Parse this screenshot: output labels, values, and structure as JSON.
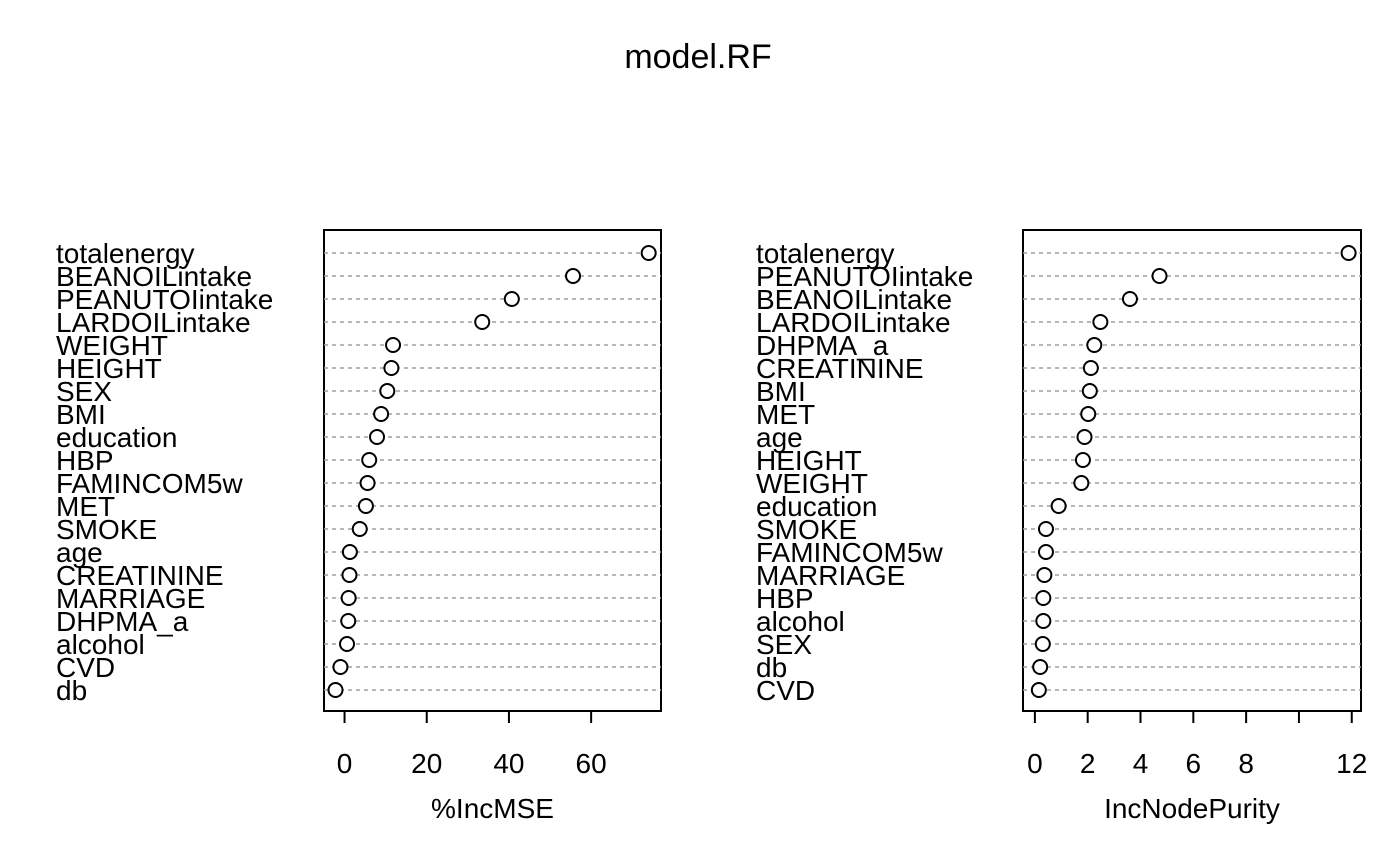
{
  "chart_data": {
    "type": "scatter",
    "title": "model.RF",
    "grid": "dotted",
    "panels": [
      {
        "xlabel": "%IncMSE",
        "ticks": [
          0,
          20,
          40,
          60
        ],
        "xlim": [
          -5,
          77
        ],
        "points": [
          {
            "label": "totalenergy",
            "value": 74.0
          },
          {
            "label": "BEANOILintake",
            "value": 55.6
          },
          {
            "label": "PEANUTOIintake",
            "value": 40.7
          },
          {
            "label": "LARDOILintake",
            "value": 33.5
          },
          {
            "label": "WEIGHT",
            "value": 11.8
          },
          {
            "label": "HEIGHT",
            "value": 11.4
          },
          {
            "label": "SEX",
            "value": 10.4
          },
          {
            "label": "BMI",
            "value": 8.9
          },
          {
            "label": "education",
            "value": 7.9
          },
          {
            "label": "HBP",
            "value": 6.0
          },
          {
            "label": "FAMINCOM5w",
            "value": 5.6
          },
          {
            "label": "MET",
            "value": 5.2
          },
          {
            "label": "SMOKE",
            "value": 3.7
          },
          {
            "label": "age",
            "value": 1.3
          },
          {
            "label": "CREATININE",
            "value": 1.2
          },
          {
            "label": "MARRIAGE",
            "value": 1.0
          },
          {
            "label": "DHPMA_a",
            "value": 0.9
          },
          {
            "label": "alcohol",
            "value": 0.6
          },
          {
            "label": "CVD",
            "value": -1.0
          },
          {
            "label": "db",
            "value": -2.2
          }
        ]
      },
      {
        "xlabel": "IncNodePurity",
        "ticks": [
          0,
          2,
          4,
          6,
          8,
          10,
          12
        ],
        "tick_labels": [
          "0",
          "2",
          "4",
          "6",
          "8",
          "",
          "12"
        ],
        "xlim": [
          -0.45,
          12.35
        ],
        "points": [
          {
            "label": "totalenergy",
            "value": 11.88
          },
          {
            "label": "PEANUTOIintake",
            "value": 4.72
          },
          {
            "label": "BEANOILintake",
            "value": 3.6
          },
          {
            "label": "LARDOILintake",
            "value": 2.48
          },
          {
            "label": "DHPMA_a",
            "value": 2.25
          },
          {
            "label": "CREATININE",
            "value": 2.12
          },
          {
            "label": "BMI",
            "value": 2.08
          },
          {
            "label": "MET",
            "value": 2.02
          },
          {
            "label": "age",
            "value": 1.88
          },
          {
            "label": "HEIGHT",
            "value": 1.82
          },
          {
            "label": "WEIGHT",
            "value": 1.76
          },
          {
            "label": "education",
            "value": 0.9
          },
          {
            "label": "SMOKE",
            "value": 0.42
          },
          {
            "label": "FAMINCOM5w",
            "value": 0.42
          },
          {
            "label": "MARRIAGE",
            "value": 0.36
          },
          {
            "label": "HBP",
            "value": 0.32
          },
          {
            "label": "alcohol",
            "value": 0.32
          },
          {
            "label": "SEX",
            "value": 0.3
          },
          {
            "label": "db",
            "value": 0.2
          },
          {
            "label": "CVD",
            "value": 0.15
          }
        ]
      }
    ]
  }
}
